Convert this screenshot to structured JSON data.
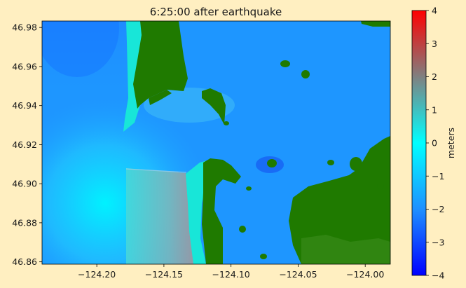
{
  "figure": {
    "title": "6:25:00 after earthquake",
    "background": "#ffefc1",
    "land_color": "#1f7a00",
    "dry_inundated_color": "#18e6d8"
  },
  "map": {
    "x_ticks": [
      {
        "value": -124.2,
        "label": "−124.20"
      },
      {
        "value": -124.15,
        "label": "−124.15"
      },
      {
        "value": -124.1,
        "label": "−124.10"
      },
      {
        "value": -124.05,
        "label": "−124.05"
      },
      {
        "value": -124.0,
        "label": "−124.00"
      }
    ],
    "y_ticks": [
      {
        "value": 46.98,
        "label": "46.98"
      },
      {
        "value": 46.96,
        "label": "46.96"
      },
      {
        "value": 46.94,
        "label": "46.94"
      },
      {
        "value": 46.92,
        "label": "46.92"
      },
      {
        "value": 46.9,
        "label": "46.90"
      },
      {
        "value": 46.88,
        "label": "46.88"
      },
      {
        "value": 46.86,
        "label": "46.86"
      }
    ],
    "xlim": [
      -124.2408,
      -123.9813
    ],
    "ylim": [
      46.8588,
      46.9833
    ]
  },
  "colorbar": {
    "label": "meters",
    "range": [
      -4,
      4
    ],
    "ticks": [
      {
        "value": 4,
        "label": "4"
      },
      {
        "value": 3,
        "label": "3"
      },
      {
        "value": 2,
        "label": "2"
      },
      {
        "value": 1,
        "label": "1"
      },
      {
        "value": 0,
        "label": "0"
      },
      {
        "value": -1,
        "label": "−1"
      },
      {
        "value": -2,
        "label": "−2"
      },
      {
        "value": -3,
        "label": "−3"
      },
      {
        "value": -4,
        "label": "−4"
      }
    ],
    "stops": [
      "#0000ff",
      "#1e90ff",
      "#00ffff",
      "#808080",
      "#ff0000"
    ]
  }
}
